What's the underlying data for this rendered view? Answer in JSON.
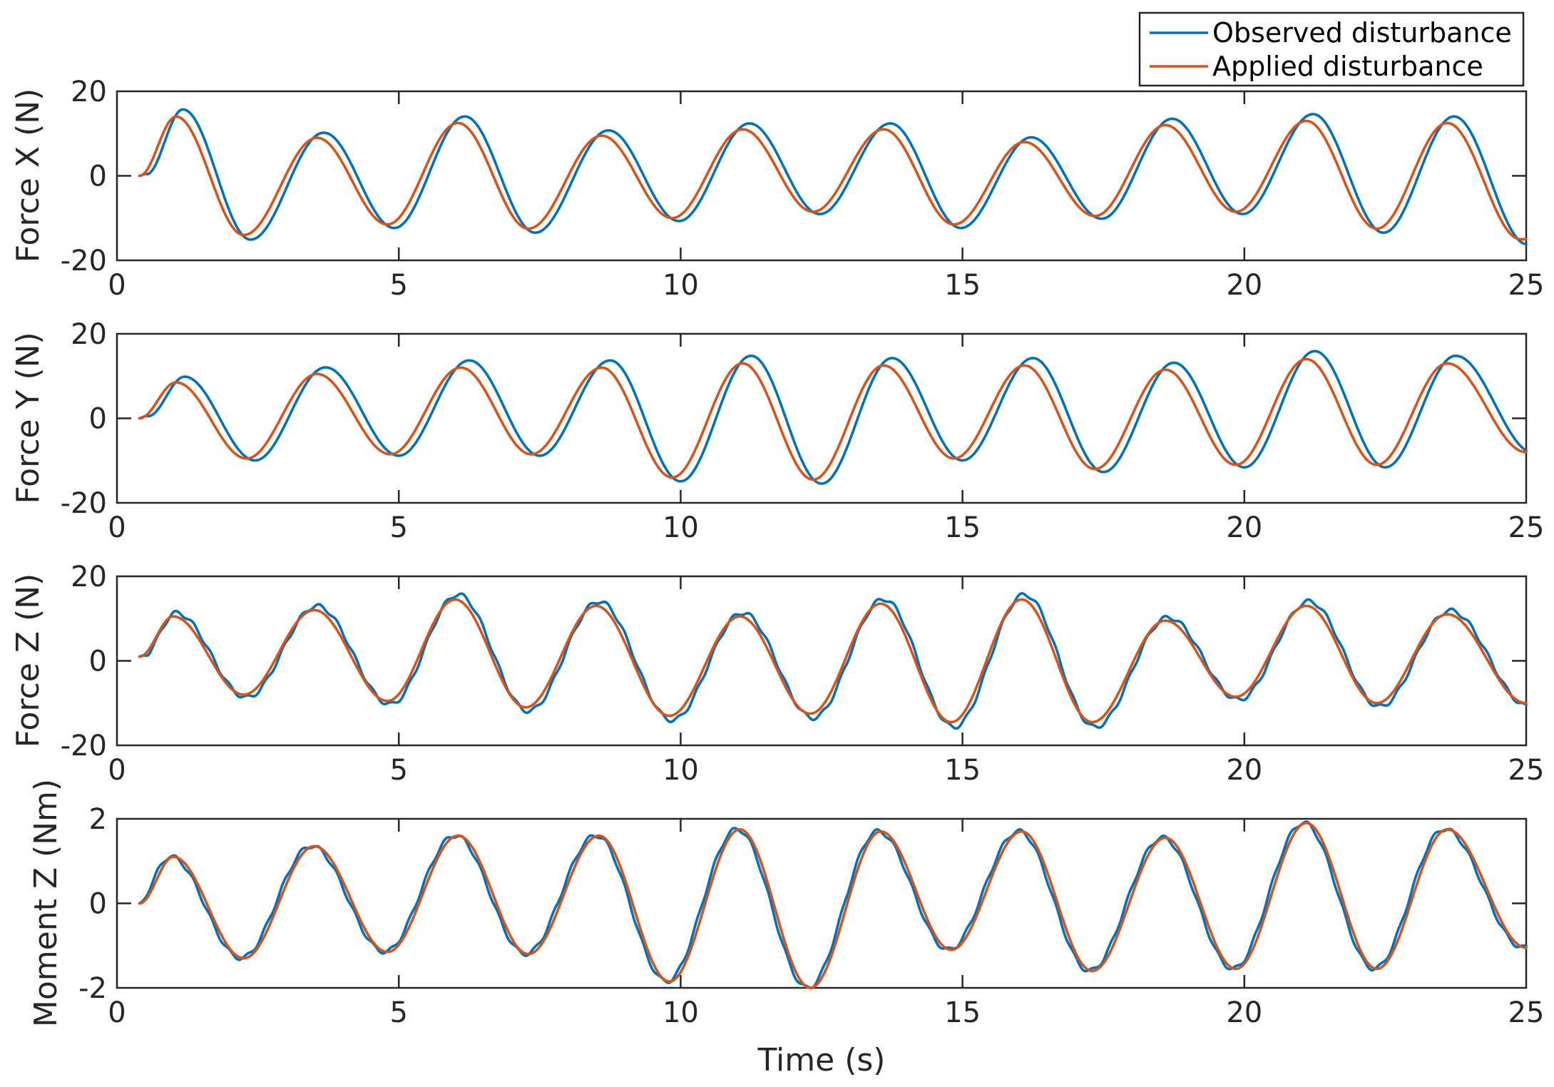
{
  "chart_data": [
    {
      "type": "line",
      "id": "force-x",
      "ylabel": "Force X (N)",
      "xlabel": "",
      "xlim": [
        0,
        25
      ],
      "ylim": [
        -20,
        20
      ],
      "xticks": [
        "0",
        "5",
        "10",
        "15",
        "20",
        "25"
      ],
      "yticks": [
        "-20",
        "0",
        "20"
      ],
      "x_start": 0.4,
      "lag": 0.12,
      "observed_scale": 1.1,
      "observed_offset": 0.3,
      "series": [
        {
          "name": "Observed disturbance",
          "color": "#0072BD"
        },
        {
          "name": "Applied disturbance",
          "color": "#D95319"
        }
      ],
      "peaks": [
        {
          "x": 0.4,
          "y": 0
        },
        {
          "x": 1.05,
          "y": 14
        },
        {
          "x": 2.25,
          "y": -14
        },
        {
          "x": 3.55,
          "y": 9
        },
        {
          "x": 4.8,
          "y": -11.5
        },
        {
          "x": 6.05,
          "y": 12.5
        },
        {
          "x": 7.3,
          "y": -12.5
        },
        {
          "x": 8.6,
          "y": 9.5
        },
        {
          "x": 9.85,
          "y": -10
        },
        {
          "x": 11.1,
          "y": 11
        },
        {
          "x": 12.35,
          "y": -8.5
        },
        {
          "x": 13.6,
          "y": 11
        },
        {
          "x": 14.85,
          "y": -11.5
        },
        {
          "x": 16.1,
          "y": 8
        },
        {
          "x": 17.35,
          "y": -9.5
        },
        {
          "x": 18.6,
          "y": 12
        },
        {
          "x": 19.85,
          "y": -8.5
        },
        {
          "x": 21.1,
          "y": 13
        },
        {
          "x": 22.35,
          "y": -12.5
        },
        {
          "x": 23.6,
          "y": 12.5
        },
        {
          "x": 24.9,
          "y": -15
        }
      ]
    },
    {
      "type": "line",
      "id": "force-y",
      "ylabel": "Force Y (N)",
      "xlabel": "",
      "xlim": [
        0,
        25
      ],
      "ylim": [
        -20,
        20
      ],
      "xticks": [
        "0",
        "5",
        "10",
        "15",
        "20",
        "25"
      ],
      "yticks": [
        "-20",
        "0",
        "20"
      ],
      "x_start": 0.4,
      "lag": 0.15,
      "observed_scale": 1.1,
      "observed_offset": 0.5,
      "series": [
        {
          "name": "Observed disturbance",
          "color": "#0072BD"
        },
        {
          "name": "Applied disturbance",
          "color": "#D95319"
        }
      ],
      "peaks": [
        {
          "x": 0.4,
          "y": 0
        },
        {
          "x": 1.05,
          "y": 8.5
        },
        {
          "x": 2.3,
          "y": -9.5
        },
        {
          "x": 3.55,
          "y": 10.5
        },
        {
          "x": 4.85,
          "y": -8.5
        },
        {
          "x": 6.1,
          "y": 12
        },
        {
          "x": 7.35,
          "y": -8.5
        },
        {
          "x": 8.6,
          "y": 12
        },
        {
          "x": 9.85,
          "y": -14
        },
        {
          "x": 11.1,
          "y": 13
        },
        {
          "x": 12.35,
          "y": -14.5
        },
        {
          "x": 13.6,
          "y": 12.5
        },
        {
          "x": 14.85,
          "y": -9.5
        },
        {
          "x": 16.1,
          "y": 12.5
        },
        {
          "x": 17.35,
          "y": -12
        },
        {
          "x": 18.6,
          "y": 11.5
        },
        {
          "x": 19.85,
          "y": -11
        },
        {
          "x": 21.1,
          "y": 14
        },
        {
          "x": 22.35,
          "y": -11
        },
        {
          "x": 23.6,
          "y": 13
        },
        {
          "x": 25.0,
          "y": -8
        }
      ]
    },
    {
      "type": "line",
      "id": "force-z",
      "ylabel": "Force Z (N)",
      "xlabel": "",
      "xlim": [
        0,
        25
      ],
      "ylim": [
        -20,
        20
      ],
      "xticks": [
        "0",
        "5",
        "10",
        "15",
        "20",
        "25"
      ],
      "yticks": [
        "-20",
        "0",
        "20"
      ],
      "x_start": 0.4,
      "lag": 0.05,
      "observed_scale": 1.08,
      "observed_offset": 0.0,
      "series": [
        {
          "name": "Observed disturbance",
          "color": "#0072BD"
        },
        {
          "name": "Applied disturbance",
          "color": "#D95319"
        }
      ],
      "peaks": [
        {
          "x": 0.4,
          "y": 1
        },
        {
          "x": 1.0,
          "y": 10.5
        },
        {
          "x": 2.25,
          "y": -8
        },
        {
          "x": 3.5,
          "y": 12
        },
        {
          "x": 4.8,
          "y": -9.5
        },
        {
          "x": 6.0,
          "y": 14.5
        },
        {
          "x": 7.25,
          "y": -11
        },
        {
          "x": 8.5,
          "y": 13
        },
        {
          "x": 9.8,
          "y": -13
        },
        {
          "x": 11.05,
          "y": 10.5
        },
        {
          "x": 12.3,
          "y": -12.5
        },
        {
          "x": 13.55,
          "y": 13.5
        },
        {
          "x": 14.8,
          "y": -14.5
        },
        {
          "x": 16.05,
          "y": 14.5
        },
        {
          "x": 17.3,
          "y": -14.5
        },
        {
          "x": 18.6,
          "y": 9.5
        },
        {
          "x": 19.85,
          "y": -8.5
        },
        {
          "x": 21.1,
          "y": 13
        },
        {
          "x": 22.35,
          "y": -10
        },
        {
          "x": 23.6,
          "y": 11
        },
        {
          "x": 25.0,
          "y": -10
        }
      ]
    },
    {
      "type": "line",
      "id": "moment-z",
      "ylabel": "Moment Z (Nm)",
      "xlabel": "Time (s)",
      "xlim": [
        0,
        25
      ],
      "ylim": [
        -2,
        2
      ],
      "xticks": [
        "0",
        "5",
        "10",
        "15",
        "20",
        "25"
      ],
      "yticks": [
        "-2",
        "0",
        "2"
      ],
      "x_start": 0.4,
      "lag": -0.05,
      "observed_scale": 1.0,
      "observed_offset": 0.05,
      "series": [
        {
          "name": "Observed disturbance",
          "color": "#0072BD"
        },
        {
          "name": "Applied disturbance",
          "color": "#D95319"
        }
      ],
      "peaks": [
        {
          "x": 0.4,
          "y": 0
        },
        {
          "x": 1.0,
          "y": 1.1
        },
        {
          "x": 2.25,
          "y": -1.3
        },
        {
          "x": 3.5,
          "y": 1.35
        },
        {
          "x": 4.8,
          "y": -1.15
        },
        {
          "x": 6.05,
          "y": 1.6
        },
        {
          "x": 7.3,
          "y": -1.2
        },
        {
          "x": 8.55,
          "y": 1.6
        },
        {
          "x": 9.8,
          "y": -1.85
        },
        {
          "x": 11.05,
          "y": 1.75
        },
        {
          "x": 12.3,
          "y": -2.0
        },
        {
          "x": 13.55,
          "y": 1.7
        },
        {
          "x": 14.8,
          "y": -1.1
        },
        {
          "x": 16.05,
          "y": 1.7
        },
        {
          "x": 17.3,
          "y": -1.6
        },
        {
          "x": 18.6,
          "y": 1.55
        },
        {
          "x": 19.85,
          "y": -1.55
        },
        {
          "x": 21.1,
          "y": 1.9
        },
        {
          "x": 22.35,
          "y": -1.55
        },
        {
          "x": 23.6,
          "y": 1.75
        },
        {
          "x": 25.0,
          "y": -1.05
        }
      ]
    }
  ],
  "legend": {
    "placement": "top-right",
    "entries": [
      {
        "label": "Observed disturbance",
        "color": "#0072BD"
      },
      {
        "label": "Applied disturbance",
        "color": "#D95319"
      }
    ]
  }
}
